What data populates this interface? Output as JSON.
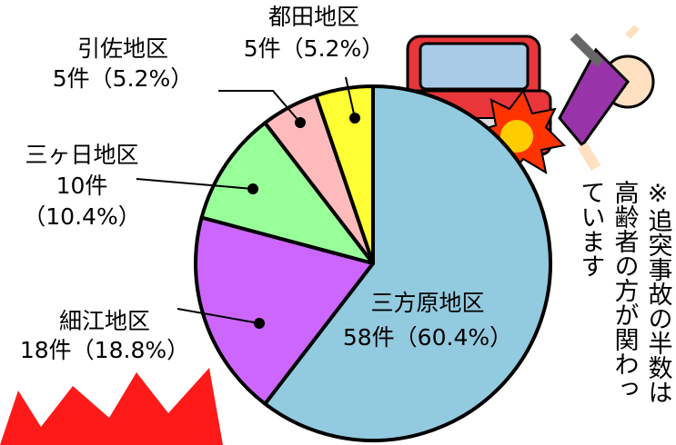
{
  "chart_data": {
    "type": "pie",
    "categories": [
      "三方原地区",
      "細江地区",
      "三ヶ日地区",
      "引佐地区",
      "都田地区"
    ],
    "values": [
      58,
      18,
      10,
      5,
      5
    ],
    "value_labels": [
      [
        "58件（60.4%）"
      ],
      [
        "18件（18.8%）"
      ],
      [
        "10件",
        "（10.4%）"
      ],
      [
        "5件（5.2%）"
      ],
      [
        "5件（5.2%）"
      ]
    ],
    "colors": [
      "#92cadf",
      "#cc66ff",
      "#99ff99",
      "#ffbbbb",
      "#ffff33"
    ],
    "annotation": [
      "※追突事故の半数は",
      "高齢者の方が関わっ",
      "ています"
    ]
  }
}
